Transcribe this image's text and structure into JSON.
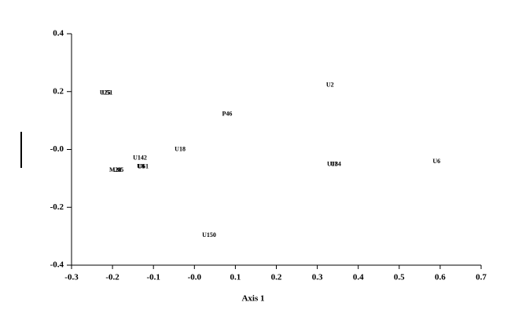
{
  "chart_data": {
    "type": "scatter",
    "x_label": "Axis 1",
    "labels": [
      "U25",
      "U51",
      "U2",
      "P46",
      "U18",
      "U142",
      "U8",
      "U61",
      "M28",
      "U05",
      "U13",
      "U84",
      "U6",
      "U150"
    ],
    "x": [
      -0.218,
      -0.213,
      0.331,
      0.08,
      -0.035,
      -0.133,
      -0.131,
      -0.125,
      -0.193,
      -0.186,
      0.337,
      0.345,
      0.591,
      0.036
    ],
    "values": [
      0.195,
      0.195,
      0.222,
      0.122,
      0.0,
      -0.03,
      -0.06,
      -0.06,
      -0.073,
      -0.073,
      -0.052,
      -0.052,
      -0.043,
      -0.298
    ],
    "xlim": [
      -0.3,
      0.7
    ],
    "xticks": [
      -0.3,
      -0.2,
      -0.1,
      {
        "value": 0,
        "label": "-0.0"
      },
      0.1,
      0.2,
      0.3,
      0.4,
      0.5,
      0.6,
      0.7
    ],
    "ylim": [
      -0.4,
      0.4
    ],
    "yticks": [
      -0.4,
      -0.2,
      {
        "value": 0,
        "label": "-0.0"
      },
      0.2,
      0.4
    ]
  }
}
